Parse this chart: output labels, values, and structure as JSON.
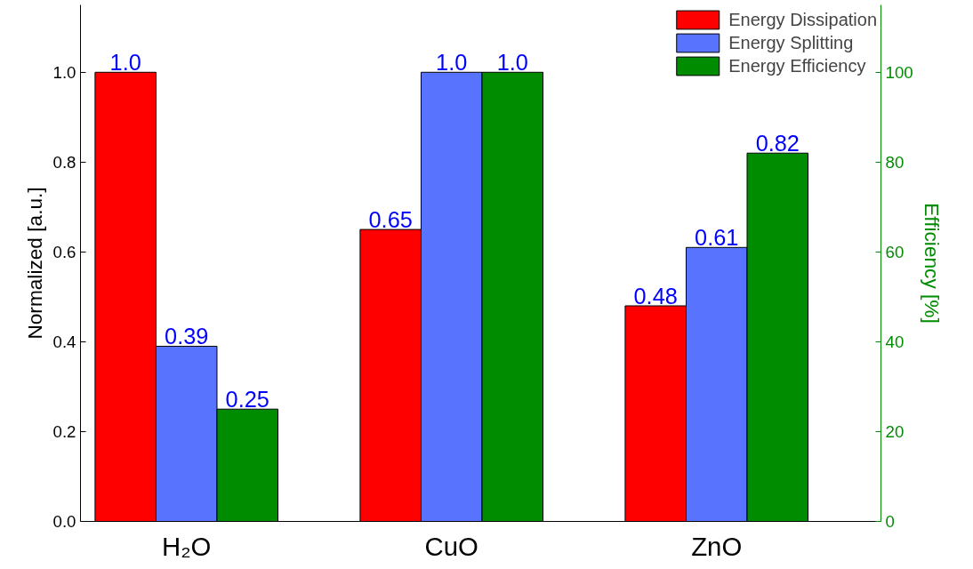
{
  "chart_data": {
    "type": "bar",
    "categories": [
      "H₂O",
      "CuO",
      "ZnO"
    ],
    "ylabel": "Normalized [a.u.]",
    "y2label": "Efficiency [%]",
    "ylim": [
      0,
      1.15
    ],
    "yticks": [
      {
        "value": 0,
        "label": "0.0"
      },
      0.2,
      0.4,
      0.6,
      0.8,
      {
        "value": 1,
        "label": "1.0"
      }
    ],
    "y2lim": [
      0,
      115
    ],
    "y2ticks": [
      0,
      20,
      40,
      60,
      80,
      100
    ],
    "grid": false,
    "legend": "top right",
    "series": [
      {
        "name": "Energy Dissipation",
        "color": "#ff0000",
        "values": [
          1.0,
          0.65,
          0.48
        ],
        "value_labels": [
          "1.0",
          "0.65",
          "0.48"
        ]
      },
      {
        "name": "Energy Splitting",
        "color": "#5874ff",
        "values": [
          0.39,
          1.0,
          0.61
        ],
        "value_labels": [
          "0.39",
          "1.0",
          "0.61"
        ]
      },
      {
        "name": "Energy Efficiency",
        "color": "#008c00",
        "values": [
          0.25,
          1.0,
          0.82
        ],
        "value_labels": [
          "0.25",
          "1.0",
          "0.82"
        ]
      }
    ]
  }
}
